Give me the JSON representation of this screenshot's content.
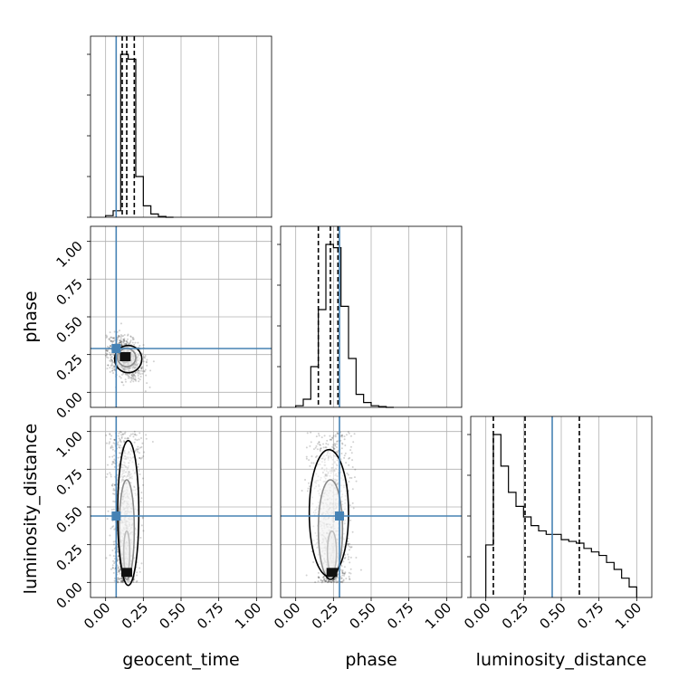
{
  "chart_data": {
    "type": "corner",
    "parameters": [
      "geocent_time",
      "phase",
      "luminosity_distance"
    ],
    "axis_labels": {
      "geocent_time": "geocent_time",
      "phase": "phase",
      "luminosity_distance": "luminosity_distance"
    },
    "tick_values": [
      0,
      0.25,
      0.5,
      0.75,
      1.0
    ],
    "tick_labels": [
      "0.00",
      "0.25",
      "0.50",
      "0.75",
      "1.00"
    ],
    "axis_range": [
      -0.1,
      1.1
    ],
    "grid": true,
    "colors": {
      "truth": "#4682b4",
      "histogram": "#000000",
      "quantile": "#000000",
      "scatter": "#000000"
    },
    "truths": {
      "geocent_time": 0.07,
      "phase": 0.29,
      "luminosity_distance": 0.44
    },
    "quantiles": {
      "geocent_time": [
        0.11,
        0.14,
        0.19
      ],
      "phase": [
        0.15,
        0.23,
        0.28
      ],
      "luminosity_distance": [
        0.05,
        0.26,
        0.62
      ]
    },
    "histograms": {
      "geocent_time": {
        "bin_edges": [
          0.0,
          0.05,
          0.1,
          0.15,
          0.2,
          0.25,
          0.3,
          0.35,
          0.4,
          0.45
        ],
        "counts": [
          0.01,
          0.04,
          1.0,
          0.97,
          0.25,
          0.07,
          0.02,
          0.005,
          0.0
        ]
      },
      "phase": {
        "bin_edges": [
          0.0,
          0.05,
          0.1,
          0.15,
          0.2,
          0.25,
          0.3,
          0.35,
          0.4,
          0.45,
          0.5,
          0.55,
          0.6,
          0.65
        ],
        "counts": [
          0.01,
          0.05,
          0.25,
          0.6,
          1.0,
          0.98,
          0.62,
          0.3,
          0.08,
          0.03,
          0.01,
          0.005,
          0.0
        ]
      },
      "luminosity_distance": {
        "bin_edges": [
          0.0,
          0.05,
          0.1,
          0.15,
          0.2,
          0.25,
          0.3,
          0.35,
          0.4,
          0.45,
          0.5,
          0.55,
          0.6,
          0.65,
          0.7,
          0.75,
          0.8,
          0.85,
          0.9,
          0.95,
          1.0
        ],
        "counts": [
          0.3,
          0.93,
          0.75,
          0.6,
          0.52,
          0.46,
          0.41,
          0.38,
          0.36,
          0.36,
          0.33,
          0.32,
          0.31,
          0.28,
          0.26,
          0.24,
          0.2,
          0.16,
          0.11,
          0.06
        ]
      }
    },
    "panels_2d": [
      {
        "x": "geocent_time",
        "y": "phase",
        "center": [
          0.13,
          0.23
        ],
        "spread": [
          0.06,
          0.07
        ],
        "rho": -0.35,
        "contours": [
          {
            "center": [
              0.13,
              0.23
            ],
            "radius": [
              0.03,
              0.03
            ]
          },
          {
            "center": [
              0.14,
              0.23
            ],
            "radius": [
              0.06,
              0.06
            ]
          },
          {
            "center": [
              0.15,
              0.22
            ],
            "radius": [
              0.09,
              0.09
            ]
          }
        ]
      },
      {
        "x": "geocent_time",
        "y": "luminosity_distance",
        "center": [
          0.13,
          0.45
        ],
        "spread": [
          0.06,
          0.28
        ],
        "rho": 0.0,
        "contours": [
          {
            "center": [
              0.14,
              0.2
            ],
            "radius": [
              0.02,
              0.14
            ]
          },
          {
            "center": [
              0.14,
              0.35
            ],
            "radius": [
              0.05,
              0.33
            ]
          },
          {
            "center": [
              0.15,
              0.46
            ],
            "radius": [
              0.07,
              0.48
            ]
          }
        ]
      },
      {
        "x": "phase",
        "y": "luminosity_distance",
        "center": [
          0.24,
          0.45
        ],
        "spread": [
          0.08,
          0.28
        ],
        "rho": 0.0,
        "contours": [
          {
            "center": [
              0.24,
              0.2
            ],
            "radius": [
              0.03,
              0.14
            ]
          },
          {
            "center": [
              0.23,
              0.35
            ],
            "radius": [
              0.08,
              0.33
            ]
          },
          {
            "center": [
              0.22,
              0.46
            ],
            "radius": [
              0.13,
              0.42
            ]
          }
        ]
      }
    ]
  }
}
